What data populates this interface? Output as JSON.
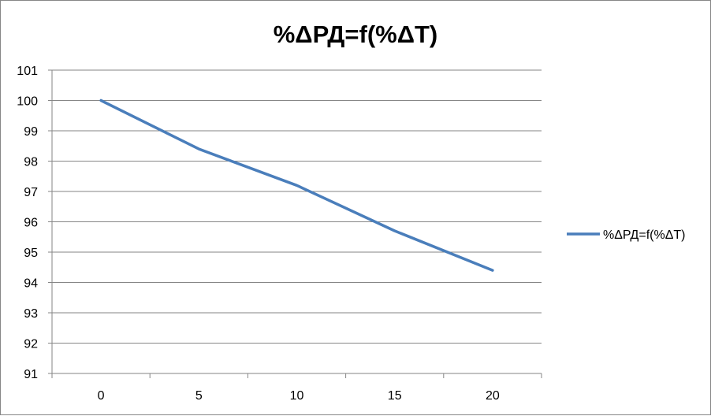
{
  "chart_data": {
    "type": "line",
    "title": "%ΔРД=f(%ΔТ)",
    "categories": [
      "0",
      "5",
      "10",
      "15",
      "20"
    ],
    "series": [
      {
        "name": "%ΔРД=f(%ΔТ)",
        "values": [
          100,
          98.4,
          97.2,
          95.7,
          94.4
        ],
        "color": "#4A7EBB"
      }
    ],
    "y_ticks": [
      "91",
      "92",
      "93",
      "94",
      "95",
      "96",
      "97",
      "98",
      "99",
      "100",
      "101"
    ],
    "ylim": [
      91,
      101
    ],
    "grid": true,
    "legend_position": "right"
  }
}
